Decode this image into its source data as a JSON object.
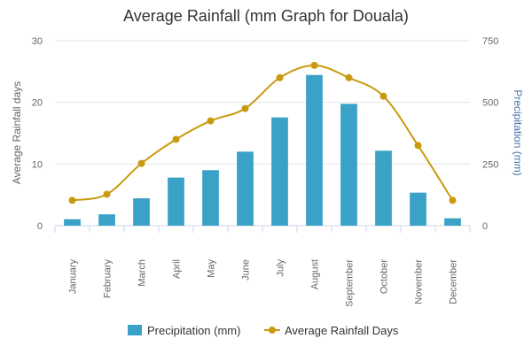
{
  "chart_data": {
    "type": "bar",
    "title": "Average Rainfall (mm Graph for Douala)",
    "categories": [
      "January",
      "February",
      "March",
      "April",
      "May",
      "June",
      "July",
      "August",
      "September",
      "October",
      "November",
      "December"
    ],
    "series": [
      {
        "name": "Precipitation (mm)",
        "type": "bar",
        "axis": "right",
        "color": "#3aa1c7",
        "values": [
          26,
          46,
          111,
          195,
          225,
          300,
          439,
          611,
          494,
          304,
          134,
          30
        ]
      },
      {
        "name": "Average Rainfall Days",
        "type": "line",
        "axis": "left",
        "color": "#c99a0e",
        "values": [
          4.1,
          5.1,
          10.1,
          14.0,
          17.0,
          19.0,
          24.0,
          26.0,
          24.0,
          21.0,
          13.0,
          4.1
        ]
      }
    ],
    "y_left": {
      "label": "Average Rainfall days",
      "range": [
        0,
        30
      ],
      "ticks": [
        "0",
        "10",
        "20",
        "30"
      ]
    },
    "y_right": {
      "label": "Precipitation (mm)",
      "range": [
        0,
        750
      ],
      "ticks": [
        "0",
        "250",
        "500",
        "750"
      ]
    },
    "grid": true,
    "legend_position": "bottom-center"
  }
}
